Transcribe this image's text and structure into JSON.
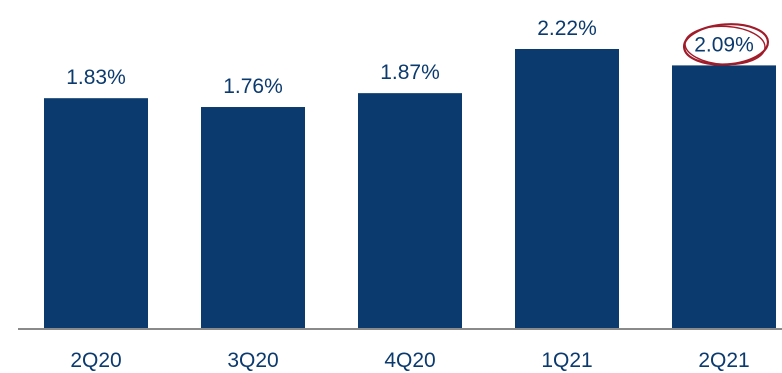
{
  "chart_data": {
    "type": "bar",
    "categories": [
      "2Q20",
      "3Q20",
      "4Q20",
      "1Q21",
      "2Q21"
    ],
    "values": [
      1.83,
      1.76,
      1.87,
      2.22,
      2.09
    ],
    "value_labels": [
      "1.83%",
      "1.76%",
      "1.87%",
      "2.22%",
      "2.09%"
    ],
    "title": "",
    "xlabel": "",
    "ylabel": "",
    "ylim": [
      0,
      2.22
    ],
    "grid": false,
    "legend": "none",
    "highlighted_category": "2Q21",
    "colors": {
      "bar": "#0b3a6e",
      "value_label": "#0b3a6e",
      "category_label": "#0b3a6e",
      "axis": "#8a8a8a",
      "highlight_ring": "#a01c2a"
    }
  }
}
